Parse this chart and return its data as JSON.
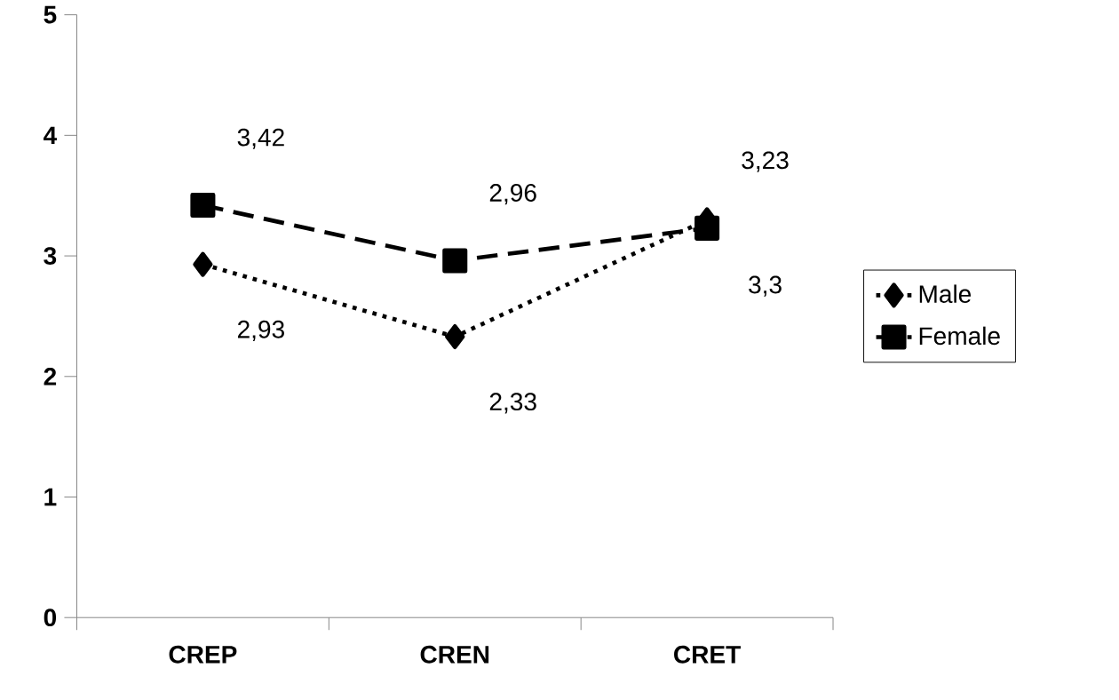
{
  "chart_data": {
    "type": "line",
    "categories": [
      "CREP",
      "CREN",
      "CRET"
    ],
    "series": [
      {
        "name": "Male",
        "color": "#000000",
        "values": [
          2.93,
          2.33,
          3.3
        ],
        "value_labels": [
          "2,93",
          "2,33",
          "3,3"
        ],
        "marker": "diamond",
        "line_style": "dotted"
      },
      {
        "name": "Female",
        "color": "#000000",
        "values": [
          3.42,
          2.96,
          3.23
        ],
        "value_labels": [
          "3,42",
          "2,96",
          "3,23"
        ],
        "marker": "square",
        "line_style": "dashed"
      }
    ],
    "ylim": [
      0,
      5
    ],
    "yticks": [
      0,
      1,
      2,
      3,
      4,
      5
    ],
    "grid": false,
    "legend": "right"
  }
}
